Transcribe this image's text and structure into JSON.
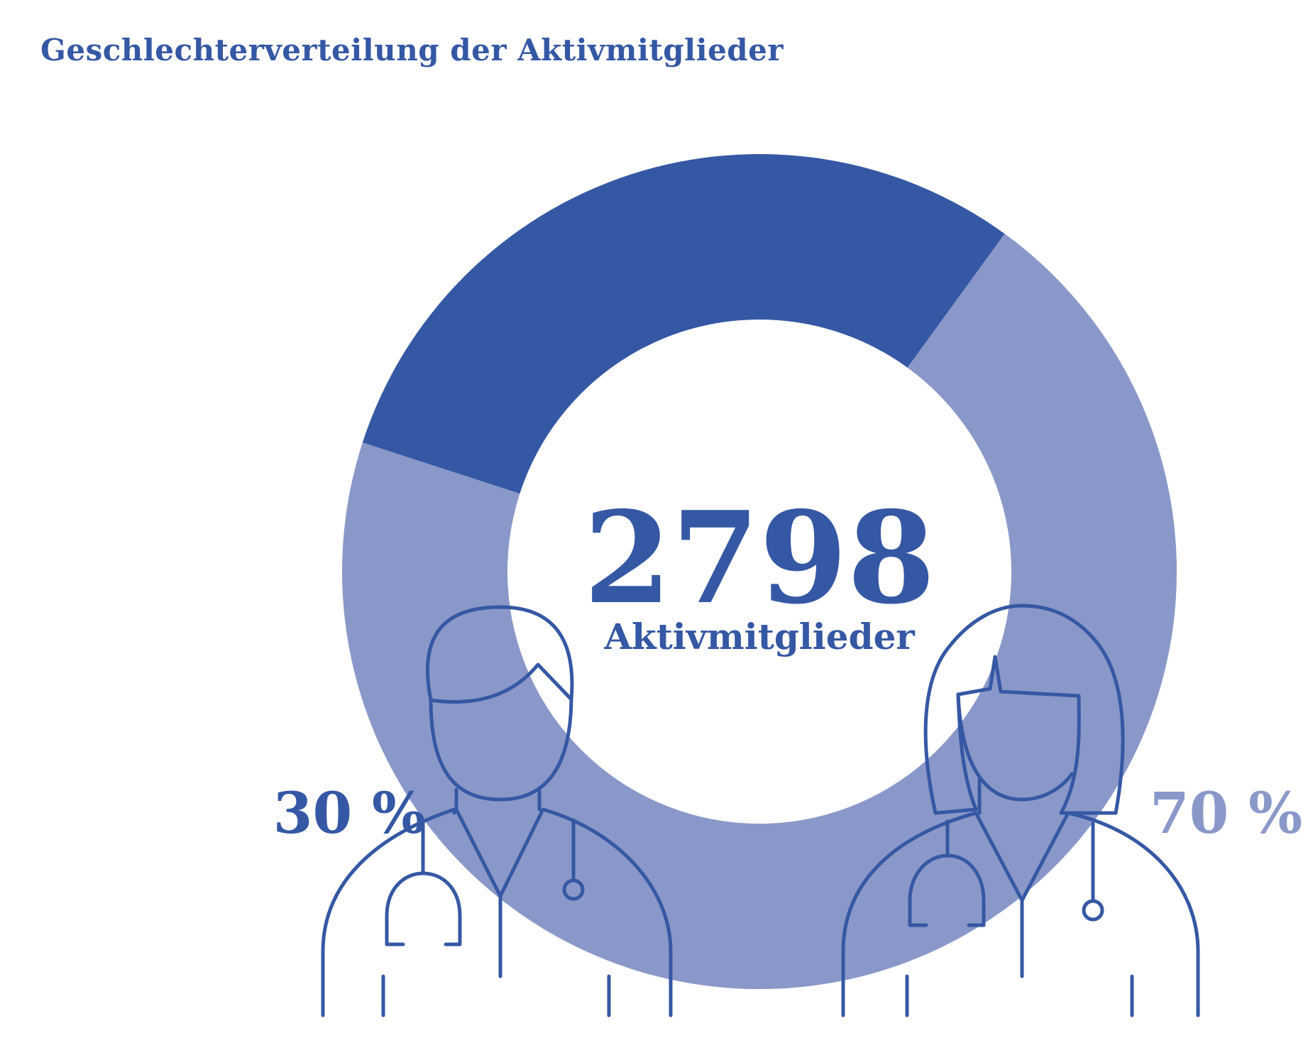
{
  "chart_data": {
    "type": "pie",
    "title": "Geschlechterverteilung der Aktivmitglieder",
    "total": "2798",
    "total_label": "Aktivmitglieder",
    "slices": [
      {
        "value": 30,
        "label": "30 %",
        "color": "#3558a4"
      },
      {
        "value": 70,
        "label": "70 %",
        "color": "#8a98c9"
      }
    ]
  },
  "colors": {
    "primary": "#3558a4",
    "secondary": "#8a98c9",
    "hair_fill": "#d7dfed",
    "background": "#ffffff"
  },
  "icons": {
    "left": "male-doctor-icon",
    "right": "female-doctor-icon"
  }
}
